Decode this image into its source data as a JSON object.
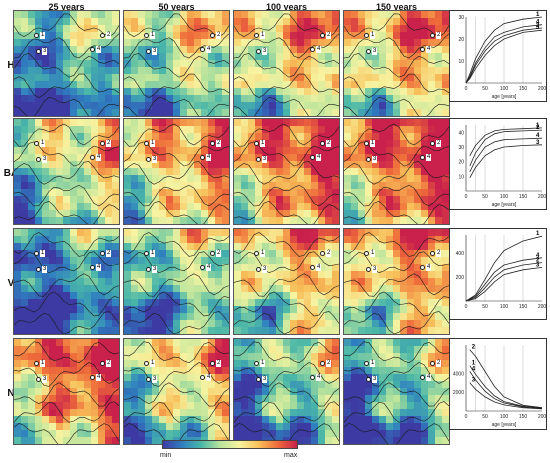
{
  "columns": [
    "25 years",
    "50 years",
    "100 years",
    "150 years"
  ],
  "rows": [
    {
      "label": "H",
      "levels": [
        0.25,
        0.45,
        0.6,
        0.65
      ]
    },
    {
      "label": "BA",
      "levels": [
        0.5,
        0.68,
        0.82,
        0.85
      ]
    },
    {
      "label": "V",
      "levels": [
        0.15,
        0.35,
        0.58,
        0.65
      ]
    },
    {
      "label": "N",
      "levels": [
        0.78,
        0.52,
        0.32,
        0.28
      ]
    }
  ],
  "markers": [
    "1",
    "2",
    "3",
    "4"
  ],
  "colorbar": {
    "min_label": "min",
    "max_label": "max"
  },
  "colors": {
    "low": "#3d3ba3",
    "mid": "#f7f3a1",
    "high": "#c9214c"
  },
  "chart_data": [
    {
      "type": "line",
      "panel": "H",
      "xlabel": "age [years]",
      "ylim": [
        0,
        30
      ],
      "yticks": [
        "10",
        "20",
        "30"
      ],
      "xticks": [
        "0",
        "50",
        "100",
        "150",
        "200"
      ],
      "xmarks": [
        25,
        50,
        100,
        150
      ],
      "series": [
        {
          "name": "1",
          "x": [
            0,
            10,
            25,
            50,
            75,
            100,
            150,
            200
          ],
          "values": [
            0,
            4,
            11,
            19,
            24,
            27,
            29,
            30
          ]
        },
        {
          "name": "4",
          "x": [
            0,
            10,
            25,
            50,
            75,
            100,
            150,
            200
          ],
          "values": [
            0,
            3,
            9,
            16,
            21,
            23,
            25.5,
            26.5
          ]
        },
        {
          "name": "2",
          "x": [
            0,
            10,
            25,
            50,
            75,
            100,
            150,
            200
          ],
          "values": [
            0,
            2.5,
            8,
            14.5,
            19,
            21.5,
            24,
            25
          ]
        },
        {
          "name": "3",
          "x": [
            0,
            10,
            25,
            50,
            75,
            100,
            150,
            200
          ],
          "values": [
            0,
            2,
            6.5,
            12.5,
            17,
            20,
            23,
            24
          ]
        }
      ]
    },
    {
      "type": "line",
      "panel": "BA",
      "xlabel": "age [years]",
      "ylim": [
        0,
        45
      ],
      "yticks": [
        "10",
        "20",
        "30",
        "40"
      ],
      "xticks": [
        "0",
        "50",
        "100",
        "150",
        "200"
      ],
      "xmarks": [
        25,
        50,
        100,
        150
      ],
      "series": [
        {
          "name": "1",
          "x": [
            10,
            25,
            50,
            75,
            100,
            150,
            200
          ],
          "values": [
            24,
            31,
            38,
            41,
            42,
            42.5,
            43
          ]
        },
        {
          "name": "2",
          "x": [
            10,
            25,
            50,
            75,
            100,
            150,
            200
          ],
          "values": [
            17,
            26,
            35,
            39,
            40.5,
            41,
            41.5
          ]
        },
        {
          "name": "4",
          "x": [
            10,
            25,
            50,
            75,
            100,
            150,
            200
          ],
          "values": [
            13,
            21,
            30,
            33.5,
            35,
            35.5,
            36
          ]
        },
        {
          "name": "3",
          "x": [
            10,
            25,
            50,
            75,
            100,
            150,
            200
          ],
          "values": [
            9,
            16,
            24,
            28,
            30,
            31,
            31.5
          ]
        }
      ]
    },
    {
      "type": "line",
      "panel": "V",
      "xlabel": "",
      "ylim": [
        0,
        550
      ],
      "yticks": [
        "200",
        "400"
      ],
      "xticks": [
        "0",
        "50",
        "100",
        "150",
        "200"
      ],
      "xmarks": [
        25,
        50,
        100,
        150
      ],
      "series": [
        {
          "name": "1",
          "x": [
            0,
            25,
            50,
            75,
            100,
            150,
            200
          ],
          "values": [
            0,
            50,
            180,
            320,
            420,
            500,
            540
          ]
        },
        {
          "name": "4",
          "x": [
            0,
            25,
            50,
            75,
            100,
            150,
            200
          ],
          "values": [
            0,
            40,
            140,
            240,
            300,
            340,
            360
          ]
        },
        {
          "name": "2",
          "x": [
            0,
            25,
            50,
            75,
            100,
            150,
            200
          ],
          "values": [
            0,
            30,
            110,
            200,
            260,
            300,
            320
          ]
        },
        {
          "name": "3",
          "x": [
            0,
            25,
            50,
            75,
            100,
            150,
            200
          ],
          "values": [
            0,
            20,
            80,
            160,
            220,
            260,
            280
          ]
        }
      ]
    },
    {
      "type": "line",
      "panel": "N",
      "xlabel": "age [years]",
      "ylim": [
        0,
        7000
      ],
      "yticks": [
        "2000",
        "4000"
      ],
      "xticks": [
        "0",
        "50",
        "100",
        "150",
        "200"
      ],
      "xmarks": [
        25,
        50,
        100,
        150
      ],
      "series": [
        {
          "name": "2",
          "x": [
            10,
            25,
            50,
            75,
            100,
            150,
            200
          ],
          "values": [
            6500,
            5800,
            4200,
            2600,
            1500,
            600,
            350
          ]
        },
        {
          "name": "1",
          "x": [
            10,
            25,
            50,
            75,
            100,
            150,
            200
          ],
          "values": [
            4800,
            3900,
            2600,
            1600,
            1000,
            500,
            300
          ]
        },
        {
          "name": "4",
          "x": [
            10,
            25,
            50,
            75,
            100,
            150,
            200
          ],
          "values": [
            4200,
            3300,
            2100,
            1300,
            850,
            450,
            280
          ]
        },
        {
          "name": "3",
          "x": [
            10,
            25,
            50,
            75,
            100,
            150,
            200
          ],
          "values": [
            3000,
            2300,
            1500,
            950,
            650,
            350,
            220
          ]
        }
      ]
    }
  ]
}
